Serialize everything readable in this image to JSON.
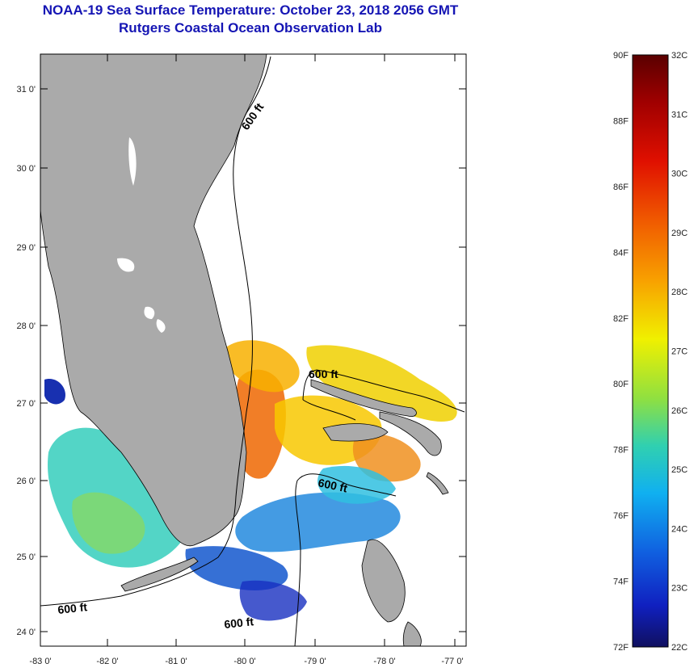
{
  "title": {
    "line1": "NOAA-19 Sea Surface Temperature:  October 23, 2018 2056 GMT",
    "line2": "Rutgers Coastal Ocean Observation Lab"
  },
  "map": {
    "lon_labels": [
      "-83 0'",
      "-82 0'",
      "-81 0'",
      "-80 0'",
      "-79 0'",
      "-78 0'",
      "-77 0'"
    ],
    "lat_labels": [
      "31 0'",
      "30 0'",
      "29 0'",
      "28 0'",
      "27 0'",
      "26 0'",
      "25 0'",
      "24 0'"
    ],
    "contour_labels": [
      "600 ft",
      "600 ft",
      "600 ft",
      "600 ft",
      "600 ft"
    ],
    "colors": {
      "land": "#aaaaaa",
      "frame": "#000000"
    }
  },
  "colorbar": {
    "fahrenheit_labels": [
      "90F",
      "88F",
      "86F",
      "84F",
      "82F",
      "80F",
      "78F",
      "76F",
      "74F",
      "72F"
    ],
    "celsius_labels": [
      "32C",
      "31C",
      "30C",
      "29C",
      "28C",
      "27C",
      "26C",
      "25C",
      "24C",
      "23C",
      "22C"
    ],
    "range_c": [
      22,
      32
    ],
    "range_f": [
      72,
      90
    ]
  }
}
